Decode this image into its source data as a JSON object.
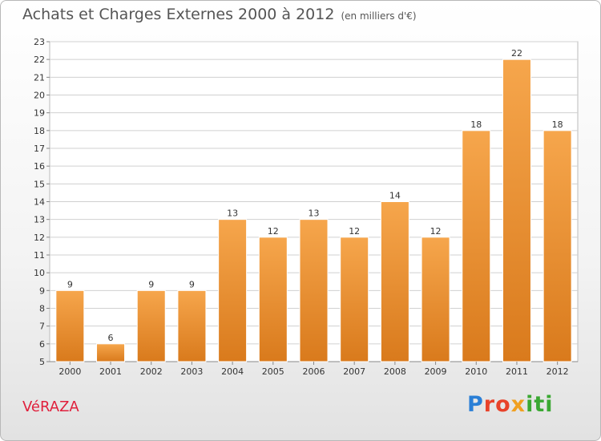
{
  "page": {
    "title": "Achats et Charges Externes 2000 à 2012",
    "unit_note": "(en milliers d'€)",
    "commune": "VéRAZA",
    "logo": "Proxiti"
  },
  "colors": {
    "bar_top": "#f6a64c",
    "bar_bottom": "#d97a1c",
    "grid": "#d0d0d0",
    "axis_text": "#333333",
    "commune": "#e0203c"
  },
  "chart_data": {
    "type": "bar",
    "categories": [
      "2000",
      "2001",
      "2002",
      "2003",
      "2004",
      "2005",
      "2006",
      "2007",
      "2008",
      "2009",
      "2010",
      "2011",
      "2012"
    ],
    "values": [
      9,
      6,
      9,
      9,
      13,
      12,
      13,
      12,
      14,
      12,
      18,
      22,
      18
    ],
    "data_labels": [
      "9",
      "6",
      "9",
      "9",
      "13",
      "12",
      "13",
      "12",
      "14",
      "12",
      "18",
      "22",
      "18"
    ],
    "title": "Achats et Charges Externes 2000 à 2012",
    "xlabel": "",
    "ylabel": "",
    "ylim": [
      5,
      23
    ],
    "yticks": [
      5,
      6,
      7,
      8,
      9,
      10,
      11,
      12,
      13,
      14,
      15,
      16,
      17,
      18,
      19,
      20,
      21,
      22,
      23
    ],
    "grid": true,
    "legend": "none"
  }
}
